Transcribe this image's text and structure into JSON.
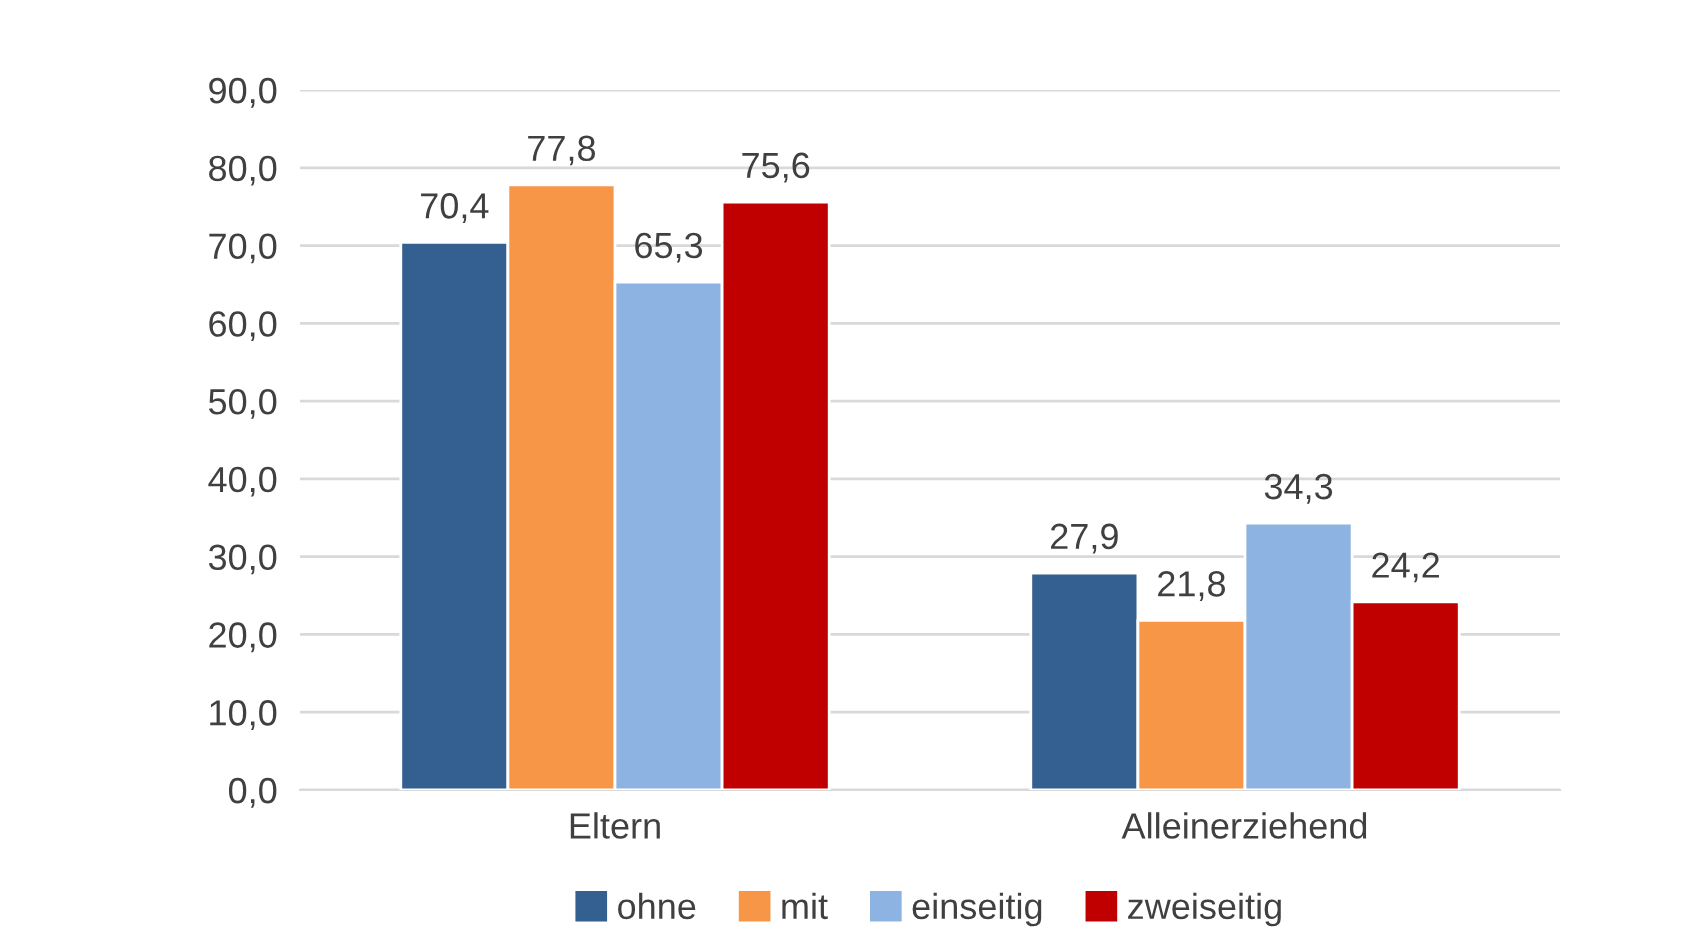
{
  "chart_data": {
    "type": "bar",
    "categories": [
      "Eltern",
      "Alleinerziehend"
    ],
    "series": [
      {
        "name": "ohne",
        "color": "#335f91",
        "values": [
          70.4,
          27.9
        ],
        "value_labels": [
          "70,4",
          "27,9"
        ]
      },
      {
        "name": "mit",
        "color": "#f79646",
        "values": [
          77.8,
          21.8
        ],
        "value_labels": [
          "77,8",
          "21,8"
        ]
      },
      {
        "name": "einseitig",
        "color": "#8db3e2",
        "values": [
          65.3,
          34.3
        ],
        "value_labels": [
          "65,3",
          "34,3"
        ]
      },
      {
        "name": "zweiseitig",
        "color": "#c00000",
        "values": [
          75.6,
          24.2
        ],
        "value_labels": [
          "75,6",
          "24,2"
        ]
      }
    ],
    "ylim": [
      0,
      90
    ],
    "yticks": [
      {
        "value": 0,
        "label": "0,0"
      },
      {
        "value": 10,
        "label": "10,0"
      },
      {
        "value": 20,
        "label": "20,0"
      },
      {
        "value": 30,
        "label": "30,0"
      },
      {
        "value": 40,
        "label": "40,0"
      },
      {
        "value": 50,
        "label": "50,0"
      },
      {
        "value": 60,
        "label": "60,0"
      },
      {
        "value": 70,
        "label": "70,0"
      },
      {
        "value": 80,
        "label": "80,0"
      },
      {
        "value": 90,
        "label": "90,0"
      }
    ],
    "grid": "y",
    "legend": "bottom"
  }
}
